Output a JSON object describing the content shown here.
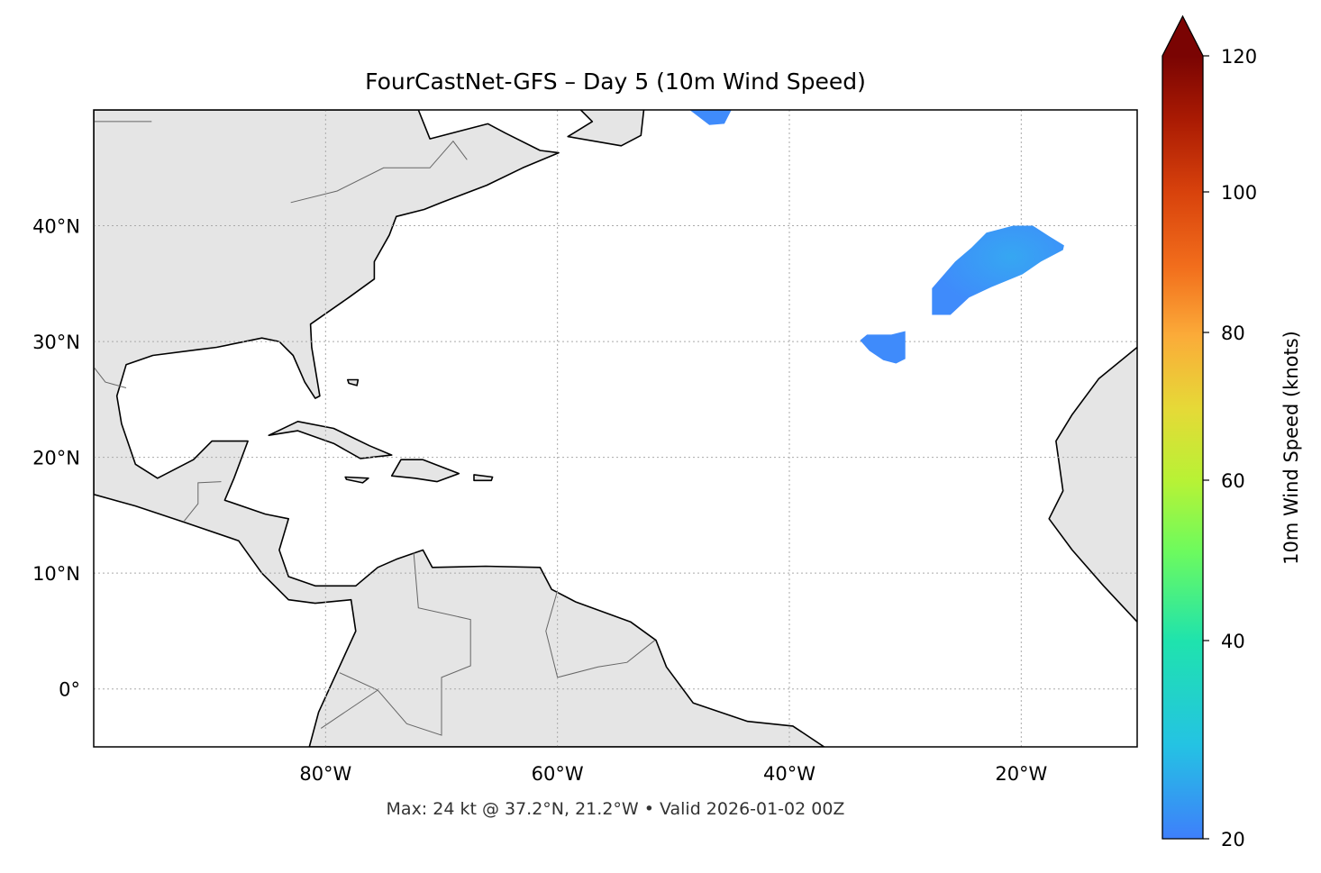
{
  "title": "FourCastNet-GFS – Day 5 (10m Wind Speed)",
  "footer": "Max: 24 kt @ 37.2°N, 21.2°W • Valid 2026-01-02 00Z",
  "map": {
    "extent": {
      "lon_min": -100,
      "lon_max": -10,
      "lat_min": -5,
      "lat_max": 50
    },
    "lon_ticks": [
      {
        "value": -80,
        "label": "80°W"
      },
      {
        "value": -60,
        "label": "60°W"
      },
      {
        "value": -40,
        "label": "40°W"
      },
      {
        "value": -20,
        "label": "20°W"
      }
    ],
    "lat_ticks": [
      {
        "value": 40,
        "label": "40°N"
      },
      {
        "value": 30,
        "label": "30°N"
      },
      {
        "value": 20,
        "label": "20°N"
      },
      {
        "value": 10,
        "label": "10°N"
      },
      {
        "value": 0,
        "label": "0°"
      }
    ],
    "gridlines": true,
    "land_color": "#e5e5e5",
    "coast_color": "#000000",
    "border_color": "#666666"
  },
  "colorbar": {
    "label": "10m Wind Speed (knots)",
    "ticks": [
      {
        "value": 20,
        "label": "20"
      },
      {
        "value": 40,
        "label": "40"
      },
      {
        "value": 60,
        "label": "60"
      },
      {
        "value": 80,
        "label": "80"
      },
      {
        "value": 100,
        "label": "100"
      },
      {
        "value": 120,
        "label": "120"
      }
    ],
    "range": [
      20,
      120
    ],
    "extend": "max",
    "colormap": "turbo",
    "placement": "right"
  },
  "wind_field": {
    "max_kt": 24,
    "max_lat": 37.2,
    "max_lon": -21.2,
    "colors": {
      "low": "#3f8bfb",
      "high": "#36a7f2"
    }
  }
}
